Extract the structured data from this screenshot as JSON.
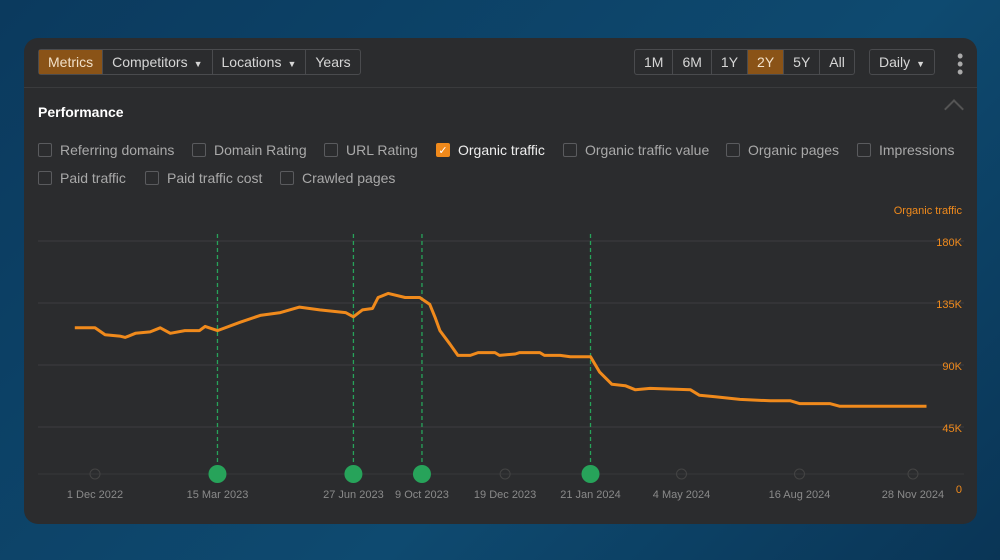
{
  "toolbar": {
    "tabs": [
      {
        "label": "Metrics",
        "active": true
      },
      {
        "label": "Competitors",
        "dropdown": true
      },
      {
        "label": "Locations",
        "dropdown": true
      },
      {
        "label": "Years"
      }
    ],
    "ranges": [
      {
        "label": "1M"
      },
      {
        "label": "6M"
      },
      {
        "label": "1Y"
      },
      {
        "label": "2Y",
        "active": true
      },
      {
        "label": "5Y"
      },
      {
        "label": "All"
      }
    ],
    "interval": "Daily"
  },
  "section_title": "Performance",
  "metrics": [
    {
      "label": "Referring domains"
    },
    {
      "label": "Domain Rating"
    },
    {
      "label": "URL Rating"
    },
    {
      "label": "Organic traffic",
      "checked": true
    },
    {
      "label": "Organic traffic value"
    },
    {
      "label": "Organic pages"
    },
    {
      "label": "Impressions"
    },
    {
      "label": "Paid traffic"
    },
    {
      "label": "Paid traffic cost"
    },
    {
      "label": "Crawled pages"
    }
  ],
  "colors": {
    "accent": "#f08a1c",
    "marker": "#27a35a"
  },
  "chart_data": {
    "type": "line",
    "series_label": "Organic traffic",
    "ylabel": "Organic traffic",
    "ylim": [
      0,
      180
    ],
    "yticks": [
      {
        "v": 0,
        "label": "0"
      },
      {
        "v": 45,
        "label": "45K"
      },
      {
        "v": 90,
        "label": "90K"
      },
      {
        "v": 135,
        "label": "135K"
      },
      {
        "v": 180,
        "label": "180K"
      }
    ],
    "x_unit": "days since 1 Dec 2022 (approx.)",
    "xticks": [
      {
        "x": 0,
        "label": "1 Dec 2022",
        "event": false
      },
      {
        "x": 109,
        "label": "15 Mar 2023",
        "event": true
      },
      {
        "x": 230,
        "label": "27 Jun 2023",
        "event": true
      },
      {
        "x": 291,
        "label": "9 Oct 2023",
        "event": true
      },
      {
        "x": 365,
        "label": "19 Dec 2023",
        "event": false
      },
      {
        "x": 441,
        "label": "21 Jan 2024",
        "event": true
      },
      {
        "x": 522,
        "label": "4 May 2024",
        "event": false
      },
      {
        "x": 627,
        "label": "16 Aug 2024",
        "event": false
      },
      {
        "x": 728,
        "label": "28 Nov 2024",
        "event": false
      }
    ],
    "points": [
      [
        -18,
        117
      ],
      [
        0,
        117
      ],
      [
        9,
        112
      ],
      [
        22,
        111
      ],
      [
        27,
        110
      ],
      [
        36,
        113
      ],
      [
        49,
        114
      ],
      [
        58,
        117
      ],
      [
        67,
        113
      ],
      [
        80,
        115
      ],
      [
        93,
        115
      ],
      [
        98,
        118
      ],
      [
        109,
        115
      ],
      [
        129,
        121
      ],
      [
        147,
        126
      ],
      [
        165,
        128
      ],
      [
        182,
        132
      ],
      [
        200,
        130
      ],
      [
        223,
        128
      ],
      [
        230,
        125
      ],
      [
        238,
        130
      ],
      [
        247,
        131
      ],
      [
        252,
        139
      ],
      [
        261,
        142
      ],
      [
        276,
        139
      ],
      [
        289,
        139
      ],
      [
        298,
        134
      ],
      [
        303,
        124
      ],
      [
        307,
        115
      ],
      [
        316,
        105
      ],
      [
        323,
        97
      ],
      [
        334,
        97
      ],
      [
        341,
        99
      ],
      [
        356,
        99
      ],
      [
        360,
        97
      ],
      [
        374,
        98
      ],
      [
        378,
        99
      ],
      [
        396,
        99
      ],
      [
        400,
        97
      ],
      [
        414,
        97
      ],
      [
        423,
        96
      ],
      [
        441,
        96
      ],
      [
        449,
        85
      ],
      [
        460,
        76
      ],
      [
        472,
        75
      ],
      [
        481,
        72
      ],
      [
        494,
        73
      ],
      [
        530,
        72
      ],
      [
        538,
        68
      ],
      [
        552,
        67
      ],
      [
        574,
        65
      ],
      [
        601,
        64
      ],
      [
        619,
        64
      ],
      [
        627,
        62
      ],
      [
        654,
        62
      ],
      [
        663,
        60
      ],
      [
        740,
        60
      ]
    ]
  }
}
